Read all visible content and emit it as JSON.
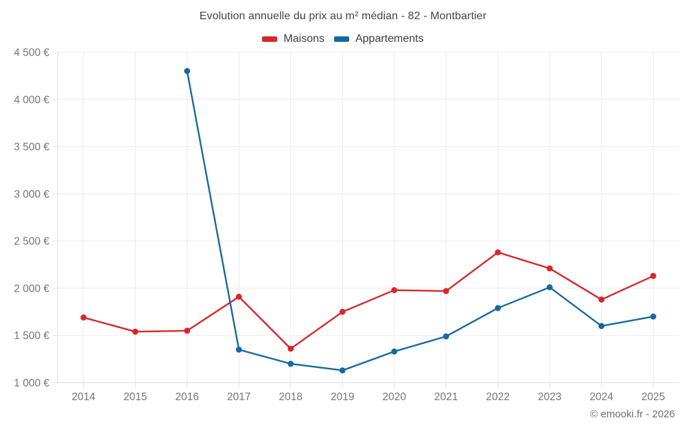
{
  "header": {
    "title": "Evolution annuelle du prix au m² médian - 82 - Montbartier"
  },
  "legend": {
    "items": [
      {
        "label": "Maisons",
        "color": "#d8262c"
      },
      {
        "label": "Appartements",
        "color": "#1469a0"
      }
    ]
  },
  "footer": {
    "copyright": "© emooki.fr - 2026"
  },
  "colors": {
    "grid": "#ebebeb",
    "axis_border": "#dddddd",
    "tick_text": "#757575",
    "maisons": "#d8262c",
    "appartements": "#1469a0"
  },
  "chart_data": {
    "type": "line",
    "title": "Evolution annuelle du prix au m² médian - 82 - Montbartier",
    "categories": [
      "2014",
      "2015",
      "2016",
      "2017",
      "2018",
      "2019",
      "2020",
      "2021",
      "2022",
      "2023",
      "2024",
      "2025"
    ],
    "series": [
      {
        "name": "Maisons",
        "color": "#d8262c",
        "values": [
          1690,
          1540,
          1550,
          1910,
          1360,
          1750,
          1980,
          1970,
          2380,
          2210,
          1880,
          2130
        ]
      },
      {
        "name": "Appartements",
        "color": "#1469a0",
        "values": [
          null,
          null,
          4300,
          1350,
          1200,
          1130,
          1330,
          1490,
          1790,
          2010,
          1600,
          1700
        ]
      }
    ],
    "xlabel": "",
    "ylabel": "",
    "ylim": [
      1000,
      4500
    ],
    "y_tick_step": 500,
    "y_tick_labels": [
      "1 000 €",
      "1 500 €",
      "2 000 €",
      "2 500 €",
      "3 000 €",
      "3 500 €",
      "4 000 €",
      "4 500 €"
    ],
    "grid": true,
    "legend_position": "top"
  }
}
